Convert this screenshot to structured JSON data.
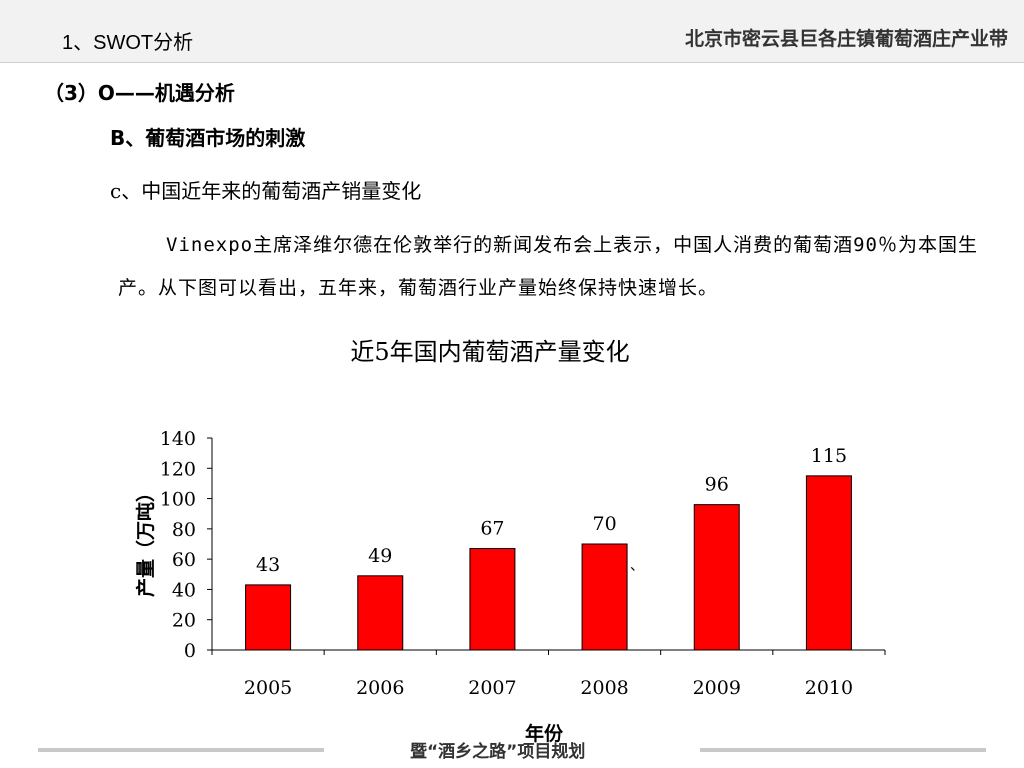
{
  "header": {
    "section_title": "1、SWOT分析",
    "org_title": "北京市密云县巨各庄镇葡萄酒庄产业带"
  },
  "outline": {
    "level1": "（3）O——机遇分析",
    "level2": "B、葡萄酒市场的刺激",
    "level3": "c、中国近年来的葡萄酒产销量变化"
  },
  "paragraph": {
    "text": "Vinexpo主席泽维尔德在伦敦举行的新闻发布会上表示，中国人消费的葡萄酒90％为本国生产。从下图可以看出，五年来，葡萄酒行业产量始终保持快速增长。"
  },
  "chart_data": {
    "type": "bar",
    "title": "近5年国内葡萄酒产量变化",
    "xlabel": "年份",
    "ylabel": "产量（万吨）",
    "categories": [
      "2005",
      "2006",
      "2007",
      "2008",
      "2009",
      "2010"
    ],
    "values": [
      43,
      49,
      67,
      70,
      96,
      115
    ],
    "data_labels": [
      "43",
      "49",
      "67",
      "70",
      "96",
      "115"
    ],
    "ylim": [
      0,
      140
    ],
    "yticks": [
      "0",
      "20",
      "40",
      "60",
      "80",
      "100",
      "120",
      "140"
    ],
    "bar_color": "#ff0000",
    "grid": false,
    "legend": "none",
    "stray_mark": "、"
  },
  "footer": {
    "text": "暨“酒乡之路”项目规划"
  }
}
